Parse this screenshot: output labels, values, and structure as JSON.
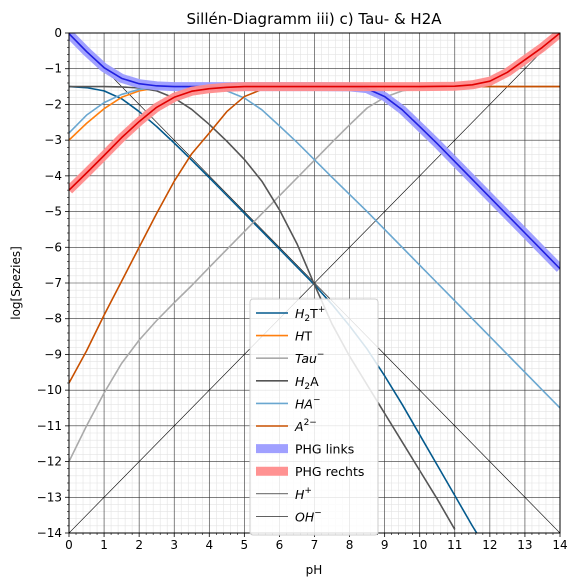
{
  "chart_data": {
    "type": "line",
    "title": "Sillén-Diagramm iii) c) Tau- & H2A",
    "xlabel": "pH",
    "ylabel": "log[Spezies]",
    "xlim": [
      0,
      14
    ],
    "ylim": [
      -14,
      0
    ],
    "xticks": [
      "0",
      "1",
      "2",
      "3",
      "4",
      "5",
      "6",
      "7",
      "8",
      "9",
      "10",
      "11",
      "12",
      "13",
      "14"
    ],
    "yticks": [
      "0",
      "−1",
      "−2",
      "−3",
      "−4",
      "−5",
      "−6",
      "−7",
      "−8",
      "−9",
      "−10",
      "−11",
      "−12",
      "−13",
      "−14"
    ],
    "grid": "major and minor",
    "legend_position": "bottom-center",
    "series": [
      {
        "name": "H2T+",
        "legend": [
          "H",
          "2",
          "T",
          "+"
        ],
        "color": "#045a8d",
        "width": 1.6,
        "x": [
          0,
          0.5,
          1,
          1.5,
          2,
          2.5,
          3,
          3.5,
          4,
          4.5,
          5,
          5.5,
          6,
          6.5,
          7,
          7.5,
          8,
          8.5,
          9,
          9.5,
          10,
          10.5,
          11,
          11.5,
          12
        ],
        "y": [
          -1.5,
          -1.53,
          -1.62,
          -1.84,
          -2.2,
          -2.62,
          -3.08,
          -3.56,
          -4.05,
          -4.55,
          -5.05,
          -5.55,
          -6.05,
          -6.55,
          -7.05,
          -7.6,
          -8.2,
          -8.85,
          -9.6,
          -10.4,
          -11.25,
          -12.1,
          -12.95,
          -13.8,
          -14.6
        ]
      },
      {
        "name": "HT",
        "legend": [
          "H",
          "",
          "T",
          ""
        ],
        "color": "#ff7f0e",
        "width": 1.6,
        "x": [
          0,
          0.5,
          1,
          1.5,
          2,
          2.5,
          3,
          3.5,
          4,
          5,
          6,
          7,
          8,
          9,
          10,
          11,
          12,
          13,
          14
        ],
        "y": [
          -3.0,
          -2.53,
          -2.12,
          -1.8,
          -1.62,
          -1.54,
          -1.51,
          -1.5,
          -1.5,
          -1.5,
          -1.5,
          -1.5,
          -1.5,
          -1.5,
          -1.5,
          -1.5,
          -1.5,
          -1.5,
          -1.5
        ]
      },
      {
        "name": "Tau−",
        "legend": [
          "Tau",
          "",
          "",
          "−"
        ],
        "color": "#aaaaaa",
        "width": 1.6,
        "x": [
          0,
          0.5,
          1,
          1.5,
          2,
          2.5,
          3,
          3.5,
          4,
          4.5,
          5,
          5.5,
          6,
          6.5,
          7,
          7.5,
          8,
          8.5,
          9,
          9.5,
          10,
          10.5,
          11,
          11.5,
          12,
          13,
          14
        ],
        "y": [
          -12.0,
          -11.0,
          -10.08,
          -9.25,
          -8.6,
          -8.05,
          -7.55,
          -7.07,
          -6.56,
          -6.06,
          -5.56,
          -5.06,
          -4.56,
          -4.06,
          -3.56,
          -3.06,
          -2.57,
          -2.1,
          -1.8,
          -1.62,
          -1.55,
          -1.52,
          -1.51,
          -1.5,
          -1.5,
          -1.5,
          -1.5
        ]
      },
      {
        "name": "H2A",
        "legend": [
          "H",
          "2",
          "A",
          ""
        ],
        "color": "#555555",
        "width": 1.6,
        "x": [
          0,
          1,
          1.5,
          2,
          2.5,
          3,
          3.5,
          4,
          4.5,
          5,
          5.5,
          6,
          6.5,
          7,
          7.5,
          8,
          8.5,
          9,
          9.5,
          10,
          10.5,
          11
        ],
        "y": [
          -1.5,
          -1.5,
          -1.51,
          -1.54,
          -1.62,
          -1.82,
          -2.14,
          -2.56,
          -3.03,
          -3.54,
          -4.15,
          -4.95,
          -5.9,
          -7.05,
          -8.15,
          -9.05,
          -9.85,
          -10.65,
          -11.45,
          -12.25,
          -13.05,
          -13.9
        ]
      },
      {
        "name": "HA−",
        "legend": [
          "HA",
          "",
          "",
          "−"
        ],
        "color": "#6aa7d0",
        "width": 1.6,
        "x": [
          0,
          0.5,
          1,
          1.5,
          2,
          2.5,
          3,
          3.5,
          4,
          4.5,
          5,
          5.5,
          6,
          6.5,
          7,
          7.5,
          8,
          8.5,
          9,
          9.5,
          10,
          10.5,
          11,
          11.5,
          12,
          12.5,
          13,
          13.5,
          14
        ],
        "y": [
          -2.8,
          -2.3,
          -1.95,
          -1.72,
          -1.58,
          -1.52,
          -1.5,
          -1.51,
          -1.53,
          -1.62,
          -1.82,
          -2.15,
          -2.6,
          -3.06,
          -3.55,
          -4.04,
          -4.52,
          -5.0,
          -5.5,
          -6.0,
          -6.5,
          -7.0,
          -7.5,
          -8.0,
          -8.5,
          -9.0,
          -9.5,
          -10.0,
          -10.5
        ]
      },
      {
        "name": "A2−",
        "legend": [
          "A",
          "",
          "",
          "2−"
        ],
        "color": "#c85000",
        "width": 1.6,
        "x": [
          0,
          0.5,
          1,
          1.5,
          2,
          2.5,
          3,
          3.5,
          4,
          4.5,
          5,
          5.5,
          6,
          6.5,
          7,
          8,
          9,
          10,
          11,
          12,
          13,
          14
        ],
        "y": [
          -9.8,
          -8.9,
          -7.9,
          -6.95,
          -6.0,
          -5.05,
          -4.15,
          -3.38,
          -2.8,
          -2.2,
          -1.78,
          -1.58,
          -1.52,
          -1.5,
          -1.5,
          -1.5,
          -1.5,
          -1.5,
          -1.5,
          -1.5,
          -1.5,
          -1.5
        ]
      },
      {
        "name": "PHG links",
        "legend": [
          "PHG links",
          "",
          "",
          ""
        ],
        "color": "#9b9bff",
        "width": 9,
        "opacity": 0.95,
        "legend_swatch": "thick",
        "x": [
          0,
          0.5,
          1,
          1.5,
          2,
          2.5,
          3,
          3.5,
          4,
          5,
          6,
          7,
          8,
          8.5,
          9,
          9.5,
          10,
          10.5,
          11,
          11.5,
          12,
          12.5,
          13,
          13.5,
          14
        ],
        "y": [
          -0.02,
          -0.52,
          -0.97,
          -1.27,
          -1.42,
          -1.48,
          -1.5,
          -1.5,
          -1.5,
          -1.5,
          -1.5,
          -1.5,
          -1.51,
          -1.56,
          -1.78,
          -2.15,
          -2.62,
          -3.1,
          -3.6,
          -4.1,
          -4.6,
          -5.1,
          -5.6,
          -6.1,
          -6.6
        ]
      },
      {
        "name": "PHG links inner",
        "legend": null,
        "color": "#2020e0",
        "width": 1.6,
        "x": [
          0,
          0.5,
          1,
          1.5,
          2,
          2.5,
          3,
          3.5,
          4,
          5,
          6,
          7,
          8,
          8.5,
          9,
          9.5,
          10,
          10.5,
          11,
          11.5,
          12,
          12.5,
          13,
          13.5,
          14
        ],
        "y": [
          -0.02,
          -0.52,
          -0.97,
          -1.27,
          -1.42,
          -1.48,
          -1.5,
          -1.5,
          -1.5,
          -1.5,
          -1.5,
          -1.5,
          -1.51,
          -1.56,
          -1.78,
          -2.15,
          -2.62,
          -3.1,
          -3.6,
          -4.1,
          -4.6,
          -5.1,
          -5.6,
          -6.1,
          -6.6
        ]
      },
      {
        "name": "PHG rechts",
        "legend": [
          "PHG rechts",
          "",
          "",
          ""
        ],
        "color": "#ff8c8c",
        "width": 9,
        "opacity": 0.95,
        "legend_swatch": "thick",
        "x": [
          0,
          0.5,
          1,
          1.5,
          2,
          2.5,
          3,
          3.5,
          4,
          4.5,
          5,
          6,
          7,
          8,
          9,
          10,
          11,
          11.5,
          12,
          12.5,
          13,
          13.5,
          14
        ],
        "y": [
          -4.4,
          -3.92,
          -3.43,
          -2.93,
          -2.48,
          -2.08,
          -1.8,
          -1.63,
          -1.56,
          -1.52,
          -1.5,
          -1.5,
          -1.5,
          -1.5,
          -1.5,
          -1.5,
          -1.49,
          -1.45,
          -1.35,
          -1.1,
          -0.75,
          -0.4,
          0.0
        ]
      },
      {
        "name": "PHG rechts inner",
        "legend": null,
        "color": "#e00000",
        "width": 1.6,
        "x": [
          0,
          0.5,
          1,
          1.5,
          2,
          2.5,
          3,
          3.5,
          4,
          4.5,
          5,
          6,
          7,
          8,
          9,
          10,
          11,
          11.5,
          12,
          12.5,
          13,
          13.5,
          14
        ],
        "y": [
          -4.4,
          -3.92,
          -3.43,
          -2.93,
          -2.48,
          -2.08,
          -1.8,
          -1.63,
          -1.56,
          -1.52,
          -1.5,
          -1.5,
          -1.5,
          -1.5,
          -1.5,
          -1.5,
          -1.49,
          -1.45,
          -1.35,
          -1.1,
          -0.75,
          -0.4,
          0.0
        ]
      },
      {
        "name": "H+",
        "legend": [
          "H",
          "",
          "",
          "+"
        ],
        "color": "#000000",
        "width": 0.6,
        "x": [
          0,
          14
        ],
        "y": [
          0,
          -14
        ]
      },
      {
        "name": "OH−",
        "legend": [
          "OH",
          "",
          "",
          "−"
        ],
        "color": "#000000",
        "width": 0.6,
        "x": [
          0,
          14
        ],
        "y": [
          -14,
          0
        ]
      }
    ]
  }
}
